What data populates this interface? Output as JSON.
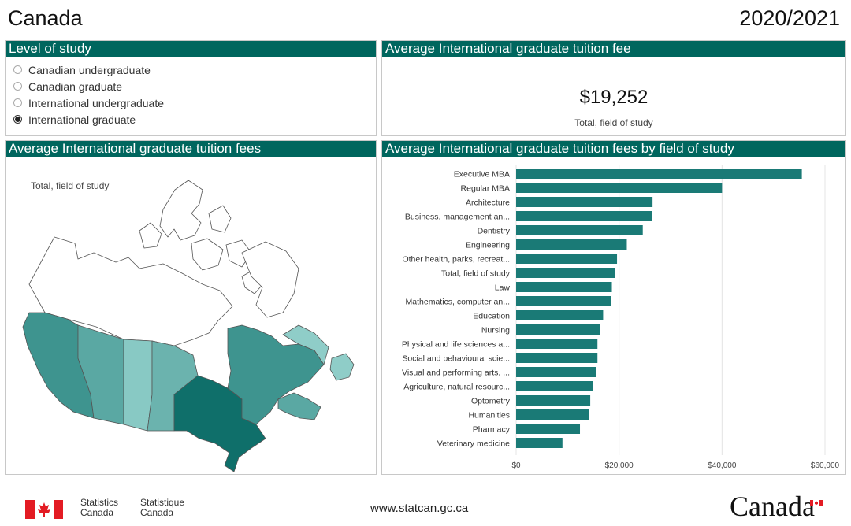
{
  "header": {
    "region": "Canada",
    "year": "2020/2021"
  },
  "level_panel": {
    "title": "Level of study",
    "options": [
      {
        "label": "Canadian undergraduate",
        "selected": false
      },
      {
        "label": "Canadian graduate",
        "selected": false
      },
      {
        "label": "International undergraduate",
        "selected": false
      },
      {
        "label": "International graduate",
        "selected": true
      }
    ]
  },
  "kpi_panel": {
    "title": "Average International graduate tuition fee",
    "value": "$19,252",
    "caption": "Total, field of study"
  },
  "map_panel": {
    "title": "Average International graduate tuition fees",
    "caption": "Total, field of study"
  },
  "bar_panel": {
    "title": "Average International graduate tuition fees by field of study"
  },
  "chart_data": {
    "type": "bar",
    "orientation": "horizontal",
    "title": "Average International graduate tuition fees by field of study",
    "categories": [
      "Executive MBA",
      "Regular MBA",
      "Architecture",
      "Business, management an...",
      "Dentistry",
      "Engineering",
      "Other health, parks, recreat...",
      "Total, field of study",
      "Law",
      "Mathematics, computer an...",
      "Education",
      "Nursing",
      "Physical and life sciences a...",
      "Social and behavioural scie...",
      "Visual and performing arts, ...",
      "Agriculture, natural resourc...",
      "Optometry",
      "Humanities",
      "Pharmacy",
      "Veterinary medicine"
    ],
    "values": [
      55500,
      40000,
      26500,
      26400,
      24600,
      21500,
      19600,
      19252,
      18600,
      18500,
      16900,
      16300,
      15800,
      15800,
      15600,
      14900,
      14400,
      14200,
      12400,
      9000
    ],
    "xlim": [
      0,
      60000
    ],
    "xticks": [
      0,
      20000,
      40000,
      60000
    ],
    "xtick_labels": [
      "$0",
      "$20,000",
      "$40,000",
      "$60,000"
    ],
    "bar_color": "#1a7a76",
    "grid": true
  },
  "map_colors": {
    "BC": "#3e948f",
    "AB": "#5aa8a3",
    "SK": "#88c9c4",
    "MB": "#6bb3ae",
    "ON": "#0f6f6a",
    "QC": "#3e948f",
    "NL": "#8fcdc8",
    "MAR": "#5aa8a3",
    "NORTH": "#ffffff"
  },
  "footer": {
    "statistics_en": "Statistics",
    "canada_en": "Canada",
    "statistique_fr": "Statistique",
    "canada_fr": "Canada",
    "url": "www.statcan.gc.ca",
    "wordmark": "Canada"
  }
}
